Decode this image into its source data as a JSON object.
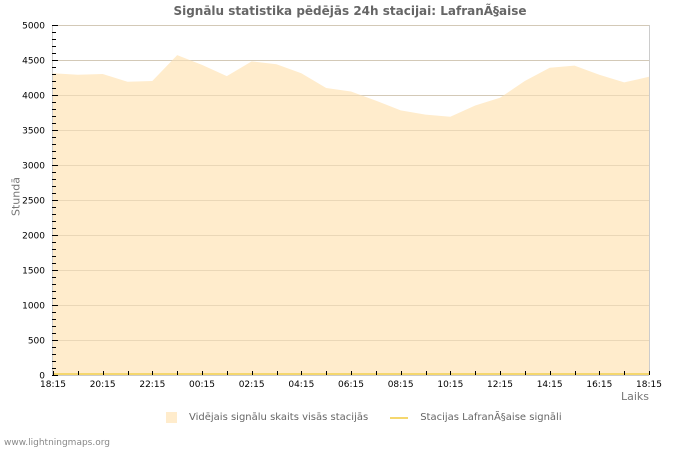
{
  "header": {
    "title": "Signālu statistika pēdējās 24h stacijai: LafranÃ§aise"
  },
  "footer": {
    "site": "www.lightningmaps.org"
  },
  "legend": {
    "items": [
      {
        "label": "Vidējais signālu skaits visās stacijās",
        "type": "area",
        "color": "#ffeccc"
      },
      {
        "label": "Stacijas LafranÃ§aise signāli",
        "type": "line",
        "color": "#f5d76e"
      }
    ]
  },
  "axes": {
    "ylabel": "Stundā",
    "xlabel": "Laiks"
  },
  "colors": {
    "area_fill": "#ffeccc",
    "station_line": "#f5d76e",
    "grid": "#cccccc",
    "frame": "#cccccc"
  },
  "chart_data": {
    "type": "area",
    "title": "Signālu statistika pēdējās 24h stacijai: LafranÃ§aise",
    "xlabel": "Laiks",
    "ylabel": "Stundā",
    "ylim": [
      0,
      5000
    ],
    "yticks": [
      0,
      500,
      1000,
      1500,
      2000,
      2500,
      3000,
      3500,
      4000,
      4500,
      5000
    ],
    "xticks": [
      "18:15",
      "20:15",
      "22:15",
      "00:15",
      "02:15",
      "04:15",
      "06:15",
      "08:15",
      "10:15",
      "12:15",
      "14:15",
      "16:15",
      "18:15"
    ],
    "grid": true,
    "legend_position": "bottom",
    "x": [
      "18:15",
      "19:15",
      "20:15",
      "21:15",
      "22:15",
      "23:15",
      "00:15",
      "01:15",
      "02:15",
      "03:15",
      "04:15",
      "05:15",
      "06:15",
      "07:15",
      "08:15",
      "09:15",
      "10:15",
      "11:15",
      "12:15",
      "13:15",
      "14:15",
      "15:15",
      "16:15",
      "17:15",
      "18:15"
    ],
    "series": [
      {
        "name": "Vidējais signālu skaits visās stacijās",
        "type": "area",
        "values": [
          4310,
          4290,
          4300,
          4190,
          4200,
          4570,
          4430,
          4270,
          4480,
          4440,
          4310,
          4100,
          4050,
          3920,
          3780,
          3720,
          3690,
          3850,
          3960,
          4200,
          4390,
          4420,
          4290,
          4180,
          4260
        ]
      },
      {
        "name": "Stacijas LafranÃ§aise signāli",
        "type": "line",
        "values": [
          0,
          0,
          0,
          0,
          0,
          0,
          0,
          0,
          0,
          0,
          0,
          0,
          0,
          0,
          0,
          0,
          0,
          0,
          0,
          0,
          0,
          0,
          0,
          0,
          0
        ]
      }
    ]
  }
}
